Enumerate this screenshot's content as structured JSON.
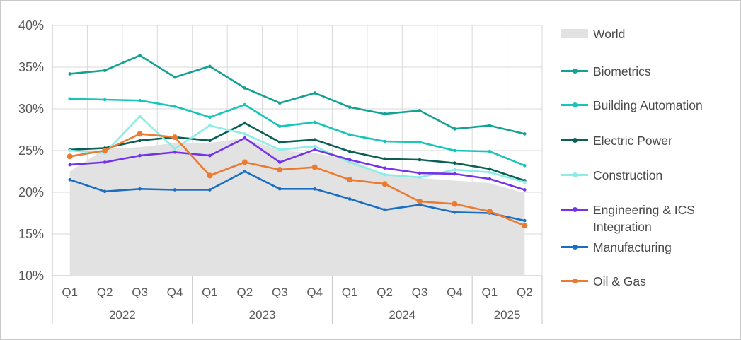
{
  "chart_data": {
    "type": "line",
    "title": "",
    "subtitle": "",
    "grid": true,
    "legend_position": "right",
    "x_categories": {
      "quarters": [
        "Q1",
        "Q2",
        "Q3",
        "Q4",
        "Q1",
        "Q2",
        "Q3",
        "Q4",
        "Q1",
        "Q2",
        "Q3",
        "Q4",
        "Q1",
        "Q2"
      ],
      "years": [
        {
          "label": "2022",
          "span": 4
        },
        {
          "label": "2023",
          "span": 4
        },
        {
          "label": "2024",
          "span": 4
        },
        {
          "label": "2025",
          "span": 2
        }
      ]
    },
    "y_axis": {
      "min": 10,
      "max": 40,
      "step": 5,
      "unit": "%",
      "ticks": [
        "40%",
        "35%",
        "30%",
        "25%",
        "20%",
        "15%",
        "10%"
      ]
    },
    "series": [
      {
        "name": "World",
        "type": "area",
        "color": "#e2e2e2",
        "values": [
          22.5,
          25.2,
          25.4,
          25.9,
          25.9,
          26.5,
          25.0,
          24.7,
          23.9,
          22.2,
          21.7,
          21.4,
          21.1,
          19.9
        ]
      },
      {
        "name": "Biometrics",
        "type": "line",
        "color": "#12a192",
        "values": [
          34.2,
          34.6,
          36.4,
          33.8,
          35.1,
          32.5,
          30.7,
          31.9,
          30.2,
          29.4,
          29.8,
          27.6,
          28.0,
          27.0
        ]
      },
      {
        "name": "Building Automation",
        "type": "line",
        "color": "#19c5b8",
        "values": [
          31.2,
          31.1,
          31.0,
          30.3,
          29.0,
          30.5,
          27.9,
          28.4,
          26.9,
          26.1,
          26.0,
          25.0,
          24.9,
          23.2
        ]
      },
      {
        "name": "Electric Power",
        "type": "line",
        "color": "#0b6053",
        "values": [
          25.1,
          25.3,
          26.2,
          26.6,
          26.2,
          28.3,
          26.0,
          26.3,
          24.9,
          24.0,
          23.9,
          23.5,
          22.8,
          21.4
        ]
      },
      {
        "name": "Construction",
        "type": "line",
        "color": "#8aeee6",
        "values": [
          25.0,
          24.7,
          29.1,
          25.2,
          28.0,
          27.0,
          25.1,
          25.5,
          23.6,
          22.1,
          21.8,
          22.7,
          22.4,
          21.2
        ]
      },
      {
        "name": "Engineering & ICS Integration",
        "type": "line",
        "color": "#7433e8",
        "values": [
          23.3,
          23.6,
          24.4,
          24.8,
          24.4,
          26.5,
          23.6,
          25.1,
          23.9,
          22.9,
          22.3,
          22.2,
          21.6,
          20.3
        ]
      },
      {
        "name": "Manufacturing",
        "type": "line",
        "color": "#1c6ec2",
        "values": [
          21.5,
          20.1,
          20.4,
          20.3,
          20.3,
          22.5,
          20.4,
          20.4,
          19.2,
          17.9,
          18.5,
          17.6,
          17.5,
          16.6
        ]
      },
      {
        "name": "Oil & Gas",
        "type": "line",
        "color": "#ec7b31",
        "values": [
          24.3,
          25.0,
          27.0,
          26.6,
          22.0,
          23.6,
          22.7,
          23.0,
          21.5,
          21.0,
          18.9,
          18.6,
          17.7,
          16.0
        ]
      }
    ]
  },
  "colors": {
    "gridline": "#d9d9d9",
    "axis_line": "#c6c6c6",
    "axis_text": "#595959",
    "legend_text": "#4a4a4a"
  }
}
